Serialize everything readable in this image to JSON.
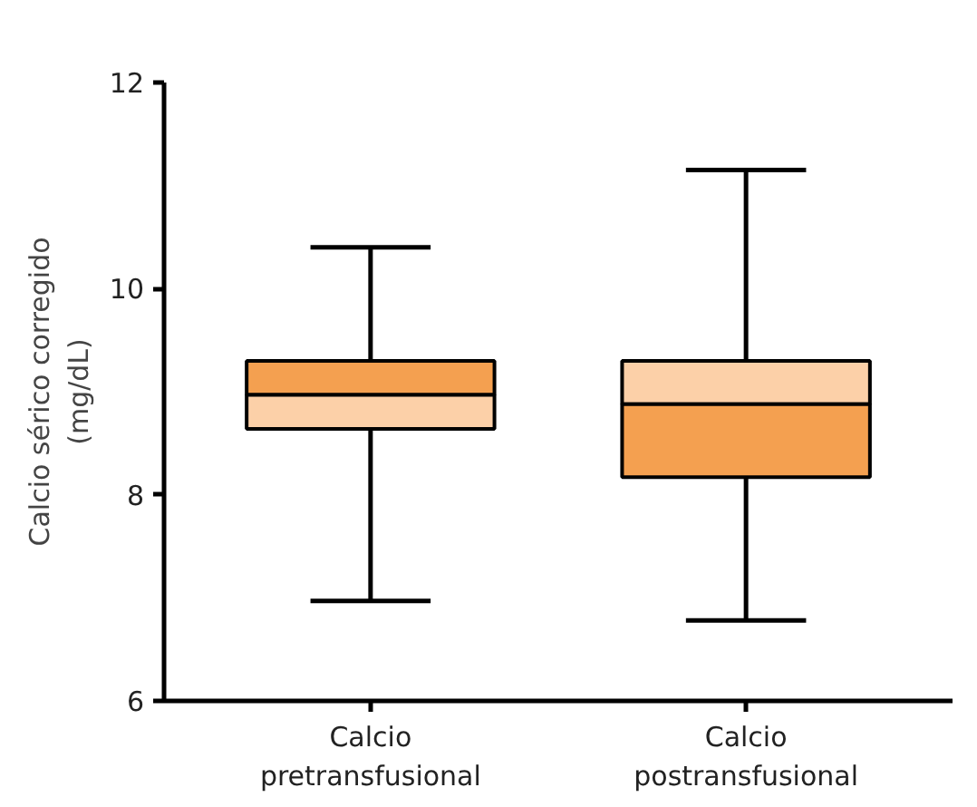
{
  "chart_data": {
    "type": "box",
    "ylabel": "Calcio sérico corregido\n(mg/dL)",
    "categories": [
      "Calcio\npretransfusional",
      "Calcio\npostransfusional"
    ],
    "boxes": [
      {
        "low": 6.97,
        "q1": 8.64,
        "median": 8.97,
        "q3": 9.3,
        "high": 10.4
      },
      {
        "low": 6.78,
        "q1": 8.17,
        "median": 8.88,
        "q3": 9.3,
        "high": 11.15
      }
    ],
    "colors": [
      [
        "#f4a050",
        "#fcd0a8"
      ],
      [
        "#fcd0a8",
        "#f4a050"
      ]
    ],
    "ylim": [
      6,
      12
    ],
    "yticks": [
      6,
      8,
      10,
      12
    ],
    "grid": false
  }
}
